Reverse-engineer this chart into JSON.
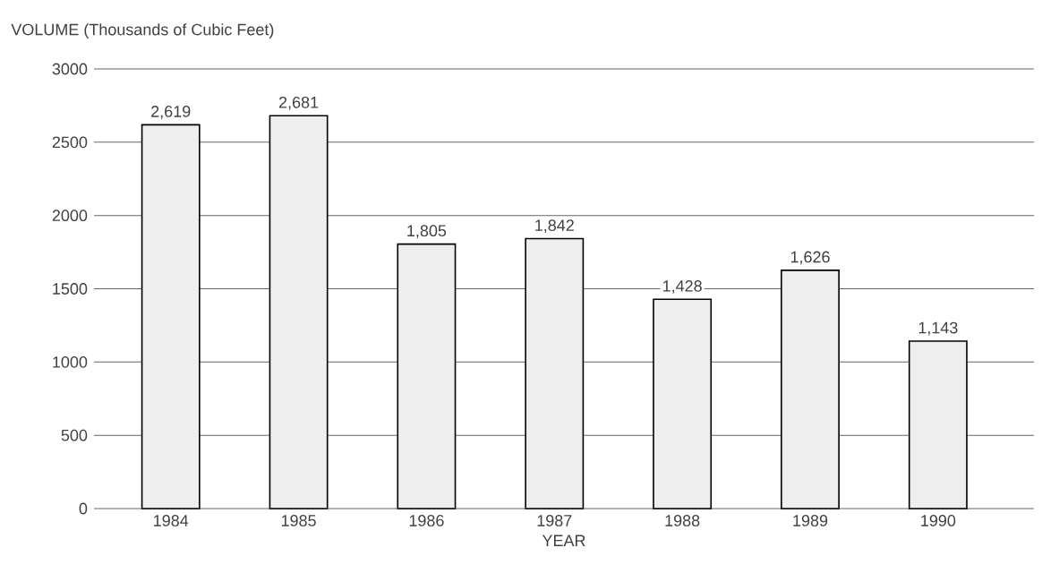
{
  "chart_data": {
    "type": "bar",
    "xlabel": "YEAR",
    "ylabel": "VOLUME (Thousands of Cubic Feet)",
    "categories": [
      "1984",
      "1985",
      "1986",
      "1987",
      "1988",
      "1989",
      "1990"
    ],
    "values": [
      2619,
      2681,
      1805,
      1842,
      1428,
      1626,
      1143
    ],
    "value_labels": [
      "2,619",
      "2,681",
      "1,805",
      "1,842",
      "1,428",
      "1,626",
      "1,143"
    ],
    "color": "#eeeeee",
    "ylim": [
      0,
      3000
    ],
    "yticks": [
      0,
      500,
      1000,
      1500,
      2000,
      2500,
      3000
    ],
    "grid": "y"
  }
}
